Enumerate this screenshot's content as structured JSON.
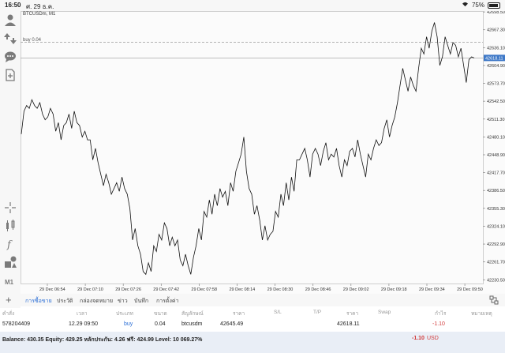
{
  "status_bar": {
    "time": "16:50",
    "date": "ศ. 29 ธ.ค.",
    "battery": "75%",
    "battery_level": 0.75
  },
  "chart": {
    "symbol_title": "BTCUSDm, M1",
    "buy_label": "buy 0.04",
    "current_price_label": "42618.11",
    "accent_color": "#3d78c7"
  },
  "chart_data": {
    "type": "line",
    "x_tick_labels": [
      "29 Dec 06:54",
      "29 Dec 07:10",
      "29 Dec 07:26",
      "29 Dec 07:42",
      "29 Dec 07:58",
      "29 Dec 08:14",
      "29 Dec 08:30",
      "29 Dec 08:46",
      "29 Dec 09:02",
      "29 Dec 09:18",
      "29 Dec 09:34",
      "29 Dec 09:50"
    ],
    "y_tick_labels": [
      "42698.50",
      "42667.30",
      "42636.10",
      "42604.90",
      "42573.70",
      "42542.50",
      "42511.30",
      "42480.10",
      "42448.90",
      "42417.70",
      "42386.50",
      "42355.30",
      "42324.10",
      "42292.90",
      "42261.70",
      "42230.50"
    ],
    "ylim": [
      42224.0,
      42700.0
    ],
    "buy_level": 42645.49,
    "current_price": 42618.11,
    "series": [
      {
        "values": [
          42485,
          42525,
          42535,
          42530,
          42545,
          42535,
          42530,
          42540,
          42520,
          42510,
          42515,
          42530,
          42520,
          42490,
          42505,
          42475,
          42500,
          42505,
          42520,
          42495,
          42525,
          42505,
          42500,
          42480,
          42490,
          42475,
          42475,
          42440,
          42460,
          42435,
          42415,
          42395,
          42415,
          42400,
          42380,
          42390,
          42400,
          42385,
          42410,
          42390,
          42380,
          42355,
          42300,
          42320,
          42290,
          42275,
          42245,
          42240,
          42260,
          42245,
          42290,
          42280,
          42310,
          42300,
          42330,
          42320,
          42290,
          42305,
          42290,
          42300,
          42265,
          42255,
          42275,
          42255,
          42240,
          42270,
          42290,
          42320,
          42300,
          42350,
          42340,
          42370,
          42345,
          42380,
          42360,
          42390,
          42375,
          42385,
          42360,
          42400,
          42385,
          42420,
          42435,
          42450,
          42480,
          42420,
          42390,
          42380,
          42345,
          42360,
          42335,
          42300,
          42325,
          42300,
          42310,
          42315,
          42350,
          42340,
          42380,
          42360,
          42400,
          42370,
          42410,
          42385,
          42440,
          42440,
          42450,
          42460,
          42440,
          42410,
          42450,
          42460,
          42450,
          42430,
          42455,
          42470,
          42440,
          42450,
          42445,
          42460,
          42430,
          42410,
          42440,
          42430,
          42455,
          42460,
          42445,
          42475,
          42450,
          42430,
          42410,
          42450,
          42440,
          42460,
          42475,
          42465,
          42470,
          42495,
          42510,
          42480,
          42500,
          42515,
          42540,
          42570,
          42600,
          42580,
          42560,
          42585,
          42570,
          42560,
          42600,
          42635,
          42625,
          42655,
          42635,
          42665,
          42680,
          42655,
          42605,
          42620,
          42655,
          42640,
          42625,
          42645,
          42640,
          42620,
          42635,
          42605,
          42575,
          42615,
          42620,
          42618.11
        ]
      }
    ]
  },
  "left_toolbar": {
    "icons": [
      "account-icon",
      "trade-icon",
      "chat-icon",
      "add-document-icon",
      "crosshair-icon",
      "indicator-icon",
      "function-icon",
      "objects-icon"
    ],
    "timeframe_label": "M1"
  },
  "bottom_tabs": {
    "tabs": [
      "การซื้อขาย",
      "ประวัติ",
      "กล่องจดหมาย",
      "ข่าว",
      "บันทึก",
      "การตั้งค่า"
    ],
    "active_index": 0
  },
  "table": {
    "headers": [
      "คำสั่ง",
      "เวลา",
      "ประเภท",
      "ขนาด",
      "สัญลักษณ์",
      "ราคา",
      "S/L",
      "T/P",
      "ราคา",
      "Swap",
      "กำไร",
      "หมายเหตุ"
    ],
    "row": {
      "order": "578204409",
      "time": "12.29 09:50",
      "type": "buy",
      "size": "0.04",
      "symbol": "btcusdm",
      "price_open": "42645.49",
      "sl": "",
      "tp": "",
      "price_current": "42618.11",
      "swap": "",
      "profit": "-1.10",
      "note": ""
    }
  },
  "balance_bar": {
    "text": "Balance: 430.35 Equity: 429.25 หลักประกัน: 4.26 ฟรี: 424.99 Level: 10 069.27%",
    "profit": "-1.10",
    "currency": "USD"
  }
}
